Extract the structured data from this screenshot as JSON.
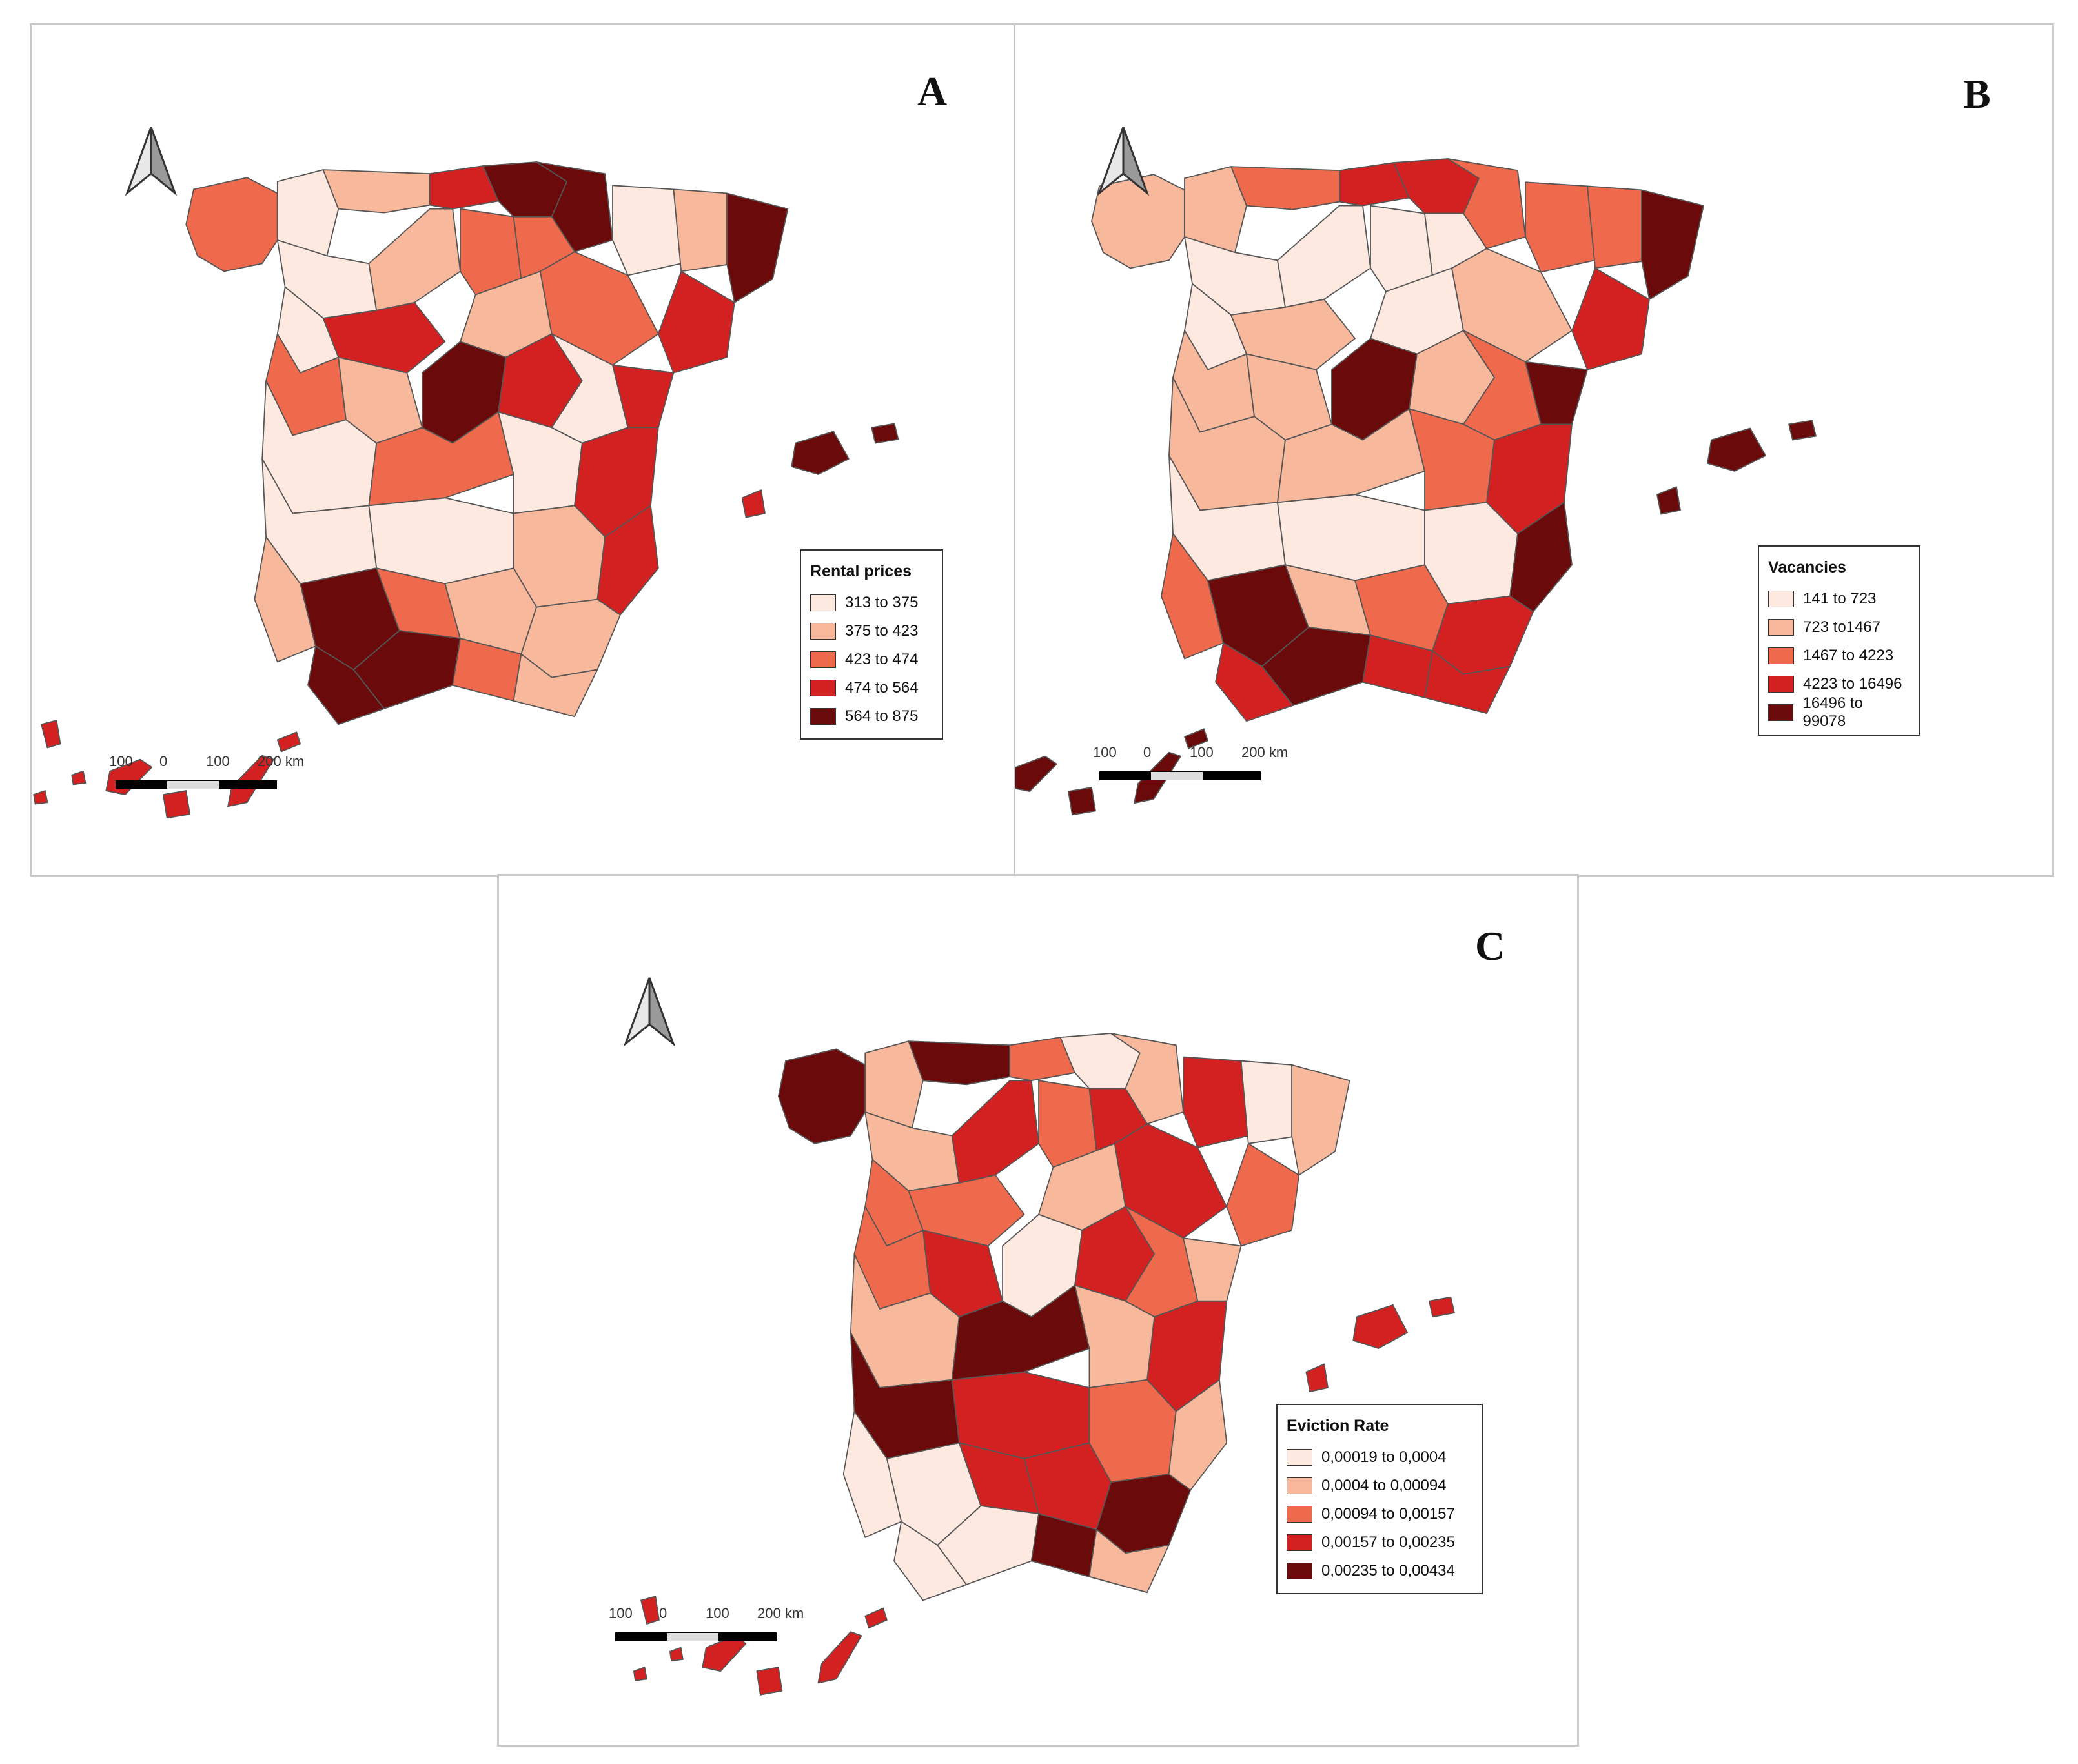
{
  "colors": {
    "c1": "#fde9e0",
    "c2": "#f7b89c",
    "c3": "#ef6a4c",
    "c4": "#d32020",
    "c5": "#6b0a0a",
    "border": "#555555"
  },
  "scale_bar": {
    "labels": [
      "100",
      "0",
      "100",
      "200 km"
    ]
  },
  "panels": [
    {
      "letter": "A",
      "legend": {
        "title": "Rental prices",
        "items": [
          {
            "label": "313 to 375",
            "class": 1
          },
          {
            "label": "375 to 423",
            "class": 2
          },
          {
            "label": "423 to 474",
            "class": 3
          },
          {
            "label": "474 to 564",
            "class": 4
          },
          {
            "label": "564 to 875",
            "class": 5
          }
        ]
      }
    },
    {
      "letter": "B",
      "legend": {
        "title": "Vacancies",
        "items": [
          {
            "label": "141 to 723",
            "class": 1
          },
          {
            "label": "723 to1467",
            "class": 2
          },
          {
            "label": "1467 to 4223",
            "class": 3
          },
          {
            "label": "4223 to 16496",
            "class": 4
          },
          {
            "label": "16496 to 99078",
            "class": 5
          }
        ]
      }
    },
    {
      "letter": "C",
      "legend": {
        "title": "Eviction Rate",
        "items": [
          {
            "label": "0,00019 to 0,0004",
            "class": 1
          },
          {
            "label": "0,0004 to 0,00094",
            "class": 2
          },
          {
            "label": "0,00094 to 0,00157",
            "class": 3
          },
          {
            "label": "0,00157 to 0,00235",
            "class": 4
          },
          {
            "label": "0,00235 to 0,00434",
            "class": 5
          }
        ]
      }
    }
  ]
}
